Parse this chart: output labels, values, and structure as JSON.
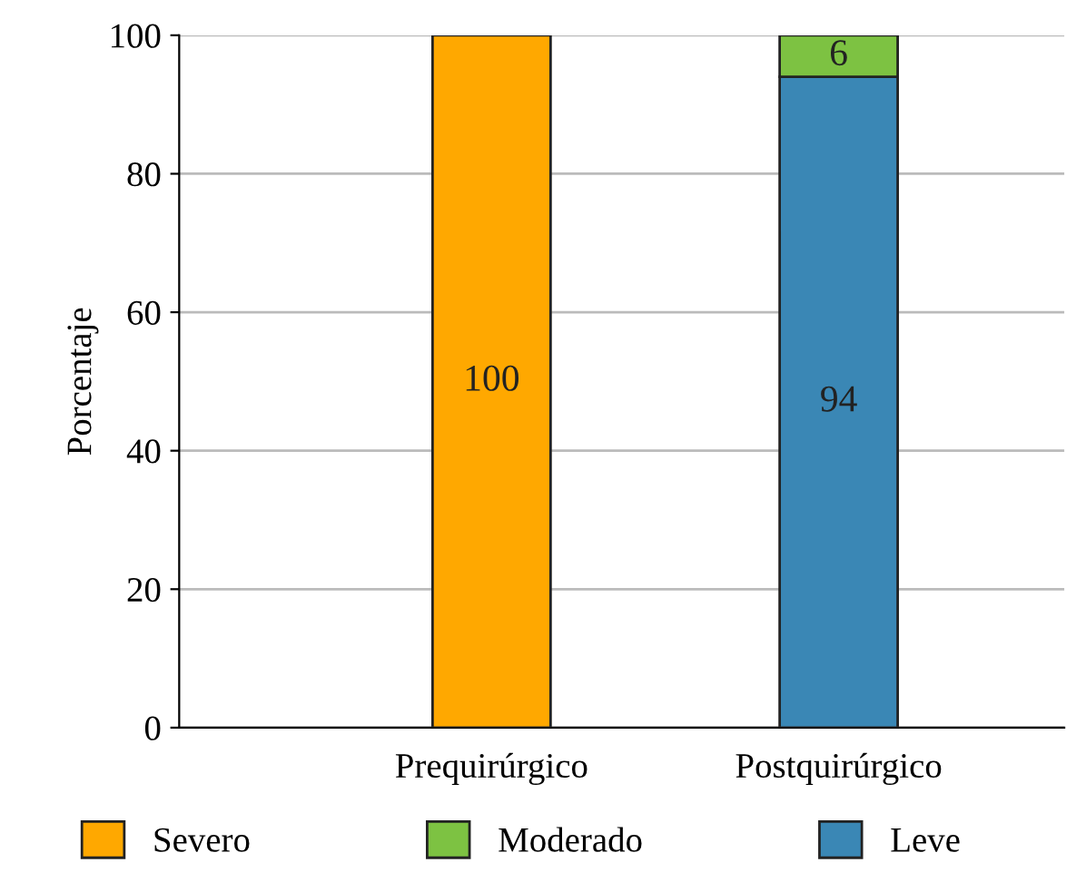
{
  "chart_data": {
    "type": "bar",
    "stacked": true,
    "ylabel": "Porcentaje",
    "categories": [
      "Prequirúrgico",
      "Postquirúrgico"
    ],
    "series": [
      {
        "name": "Leve",
        "color": "#3a87b5",
        "values": [
          null,
          94
        ]
      },
      {
        "name": "Moderado",
        "color": "#7dc242",
        "values": [
          null,
          6
        ]
      },
      {
        "name": "Severo",
        "color": "#ffa800",
        "values": [
          100,
          null
        ]
      }
    ],
    "ylim": [
      0,
      100
    ],
    "yticks": [
      0,
      20,
      40,
      60,
      80,
      100
    ],
    "grid": "y",
    "legend": "bottom",
    "data_labels": true
  }
}
